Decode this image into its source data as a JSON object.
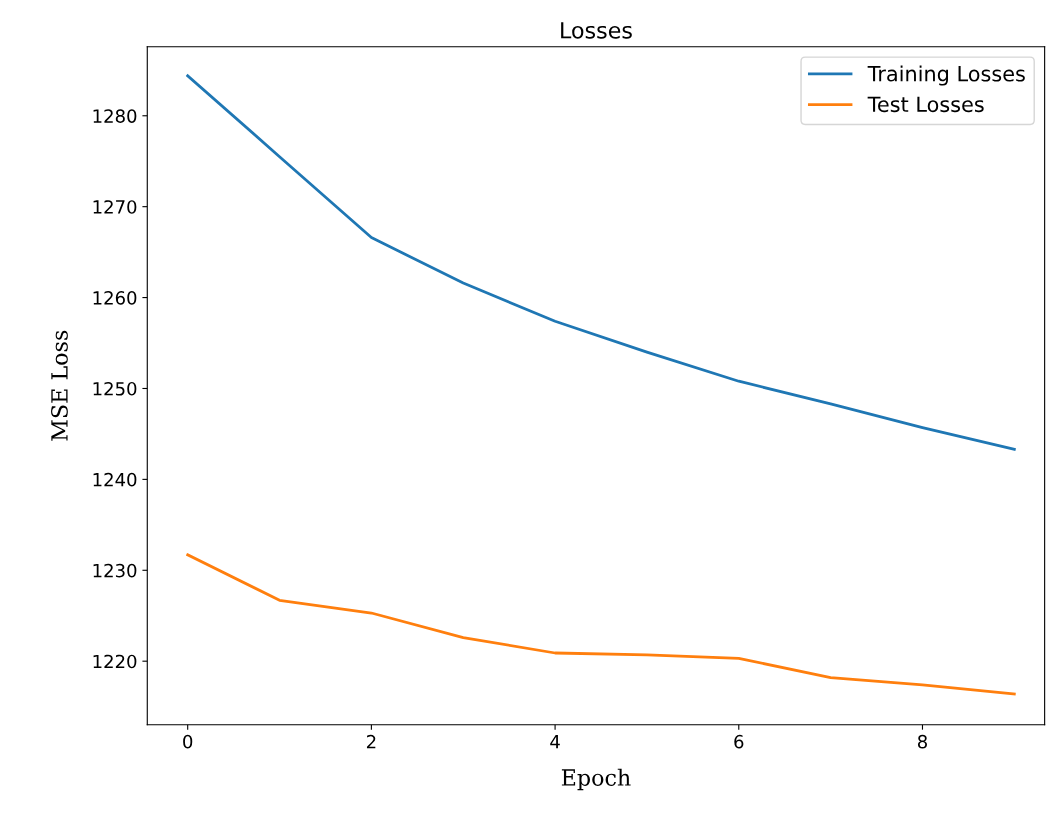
{
  "chart_data": {
    "type": "line",
    "title": "Losses",
    "xlabel": "Epoch",
    "ylabel": "MSE Loss",
    "x": [
      0,
      1,
      2,
      3,
      4,
      5,
      6,
      7,
      8,
      9
    ],
    "series": [
      {
        "name": "Training Losses",
        "color": "#1f77b4",
        "values": [
          1284.4,
          1275.5,
          1266.6,
          1261.6,
          1257.4,
          1254.0,
          1250.8,
          1248.3,
          1245.7,
          1243.3
        ]
      },
      {
        "name": "Test Losses",
        "color": "#ff7f0e",
        "values": [
          1231.7,
          1226.7,
          1225.3,
          1222.6,
          1220.9,
          1220.7,
          1220.3,
          1218.2,
          1217.4,
          1216.4
        ]
      }
    ],
    "xlim": [
      -0.44,
      9.33
    ],
    "xticks": [
      0,
      2,
      4,
      6,
      8
    ],
    "ylim": [
      1213,
      1287.6
    ],
    "yticks": [
      1220,
      1230,
      1240,
      1250,
      1260,
      1270,
      1280
    ],
    "legend": "top right",
    "grid": false,
    "marker": "none",
    "line_style": "solid"
  }
}
